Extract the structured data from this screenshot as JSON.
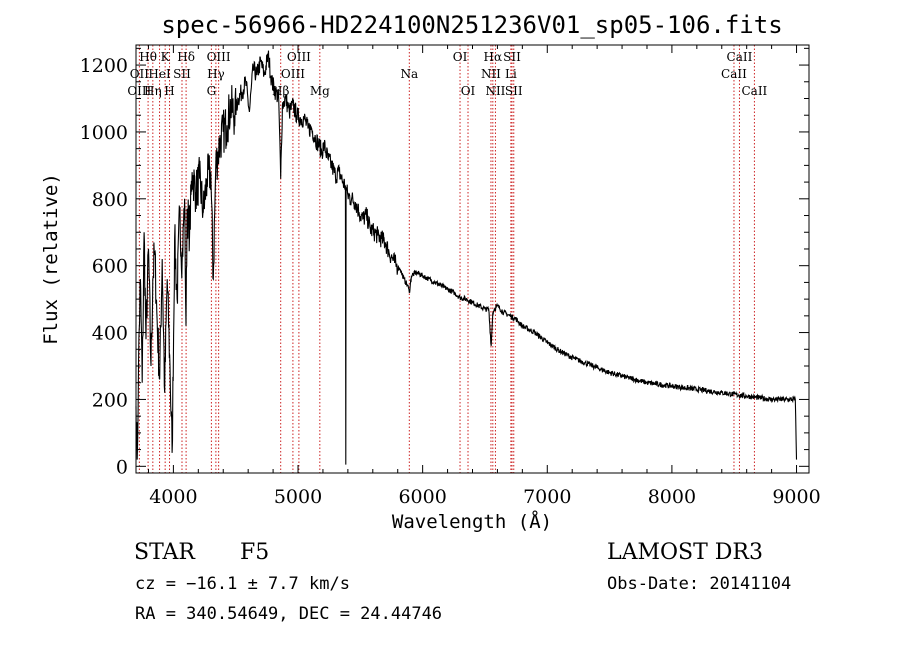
{
  "chart_data": {
    "type": "line",
    "title": "spec-56966-HD224100N251236V01_sp05-106.fits",
    "xlabel": "Wavelength (Å)",
    "ylabel": "Flux (relative)",
    "xlim": [
      3700,
      9100
    ],
    "ylim": [
      -20,
      1260
    ],
    "xticks": [
      4000,
      5000,
      6000,
      7000,
      8000,
      9000
    ],
    "yticks": [
      0,
      200,
      400,
      600,
      800,
      1000,
      1200
    ],
    "series": [
      {
        "name": "flux",
        "x": [
          3700,
          3710,
          3720,
          3735,
          3750,
          3765,
          3780,
          3800,
          3820,
          3835,
          3850,
          3870,
          3890,
          3910,
          3930,
          3950,
          3970,
          3990,
          4010,
          4030,
          4050,
          4070,
          4090,
          4101,
          4110,
          4130,
          4150,
          4180,
          4210,
          4240,
          4270,
          4300,
          4320,
          4340,
          4360,
          4380,
          4400,
          4430,
          4460,
          4490,
          4520,
          4550,
          4580,
          4610,
          4640,
          4670,
          4700,
          4730,
          4760,
          4790,
          4820,
          4845,
          4861,
          4875,
          4900,
          4930,
          4960,
          4990,
          5020,
          5050,
          5080,
          5110,
          5140,
          5170,
          5190,
          5210,
          5240,
          5270,
          5300,
          5330,
          5360,
          5380,
          5383,
          5386,
          5400,
          5430,
          5460,
          5490,
          5520,
          5550,
          5580,
          5610,
          5640,
          5670,
          5700,
          5730,
          5760,
          5790,
          5820,
          5850,
          5880,
          5893,
          5910,
          5950,
          6000,
          6050,
          6100,
          6150,
          6200,
          6250,
          6300,
          6350,
          6400,
          6450,
          6500,
          6530,
          6550,
          6563,
          6575,
          6600,
          6650,
          6700,
          6750,
          6800,
          6900,
          7000,
          7100,
          7200,
          7300,
          7400,
          7500,
          7600,
          7700,
          7800,
          7900,
          8000,
          8100,
          8200,
          8300,
          8400,
          8500,
          8600,
          8700,
          8800,
          8900,
          8990,
          9000
        ],
        "values": [
          180,
          20,
          300,
          560,
          250,
          700,
          380,
          650,
          300,
          560,
          640,
          430,
          260,
          620,
          220,
          560,
          330,
          40,
          680,
          500,
          760,
          610,
          800,
          420,
          770,
          700,
          880,
          820,
          860,
          760,
          860,
          880,
          560,
          900,
          940,
          980,
          1000,
          1020,
          1080,
          1050,
          1100,
          1120,
          1150,
          1060,
          1190,
          1170,
          1210,
          1170,
          1230,
          1150,
          1120,
          1100,
          860,
          1080,
          1100,
          1060,
          1080,
          1050,
          1040,
          1040,
          1010,
          1010,
          980,
          960,
          940,
          960,
          920,
          900,
          870,
          880,
          850,
          840,
          5,
          830,
          810,
          800,
          790,
          760,
          740,
          750,
          710,
          700,
          690,
          680,
          670,
          640,
          620,
          600,
          590,
          560,
          540,
          520,
          570,
          580,
          570,
          560,
          550,
          540,
          530,
          520,
          505,
          500,
          490,
          480,
          470,
          470,
          360,
          460,
          470,
          480,
          460,
          450,
          440,
          420,
          400,
          370,
          345,
          325,
          310,
          295,
          280,
          270,
          260,
          250,
          245,
          240,
          235,
          230,
          225,
          220,
          215,
          210,
          205,
          200,
          200,
          200,
          20
        ]
      }
    ],
    "lines": [
      {
        "label": "Hθ",
        "wl": 3797,
        "row": 0
      },
      {
        "label": "OII",
        "wl": 3727,
        "row": 1
      },
      {
        "label": "OIII",
        "wl": 3727,
        "row": 2
      },
      {
        "label": "HeI",
        "wl": 3889,
        "row": 1
      },
      {
        "label": "Hη",
        "wl": 3835,
        "row": 2
      },
      {
        "label": "K",
        "wl": 3934,
        "row": 0
      },
      {
        "label": "SII",
        "wl": 4069,
        "row": 1
      },
      {
        "label": "H",
        "wl": 3969,
        "row": 2
      },
      {
        "label": "Hδ",
        "wl": 4102,
        "row": 0
      },
      {
        "label": "OIII",
        "wl": 4363,
        "row": 0
      },
      {
        "label": "Hγ",
        "wl": 4341,
        "row": 1
      },
      {
        "label": "G",
        "wl": 4305,
        "row": 2
      },
      {
        "label": "OIII",
        "wl": 5007,
        "row": 0
      },
      {
        "label": "OIII",
        "wl": 4959,
        "row": 1
      },
      {
        "label": "Hβ",
        "wl": 4861,
        "row": 2
      },
      {
        "label": "Mg",
        "wl": 5175,
        "row": 2
      },
      {
        "label": "Na",
        "wl": 5893,
        "row": 1
      },
      {
        "label": "OI",
        "wl": 6300,
        "row": 0
      },
      {
        "label": "OI",
        "wl": 6364,
        "row": 2
      },
      {
        "label": "Hα",
        "wl": 6563,
        "row": 0
      },
      {
        "label": "NII",
        "wl": 6548,
        "row": 1
      },
      {
        "label": "NII",
        "wl": 6584,
        "row": 2
      },
      {
        "label": "SII",
        "wl": 6717,
        "row": 0
      },
      {
        "label": "Li",
        "wl": 6708,
        "row": 1
      },
      {
        "label": "SII",
        "wl": 6731,
        "row": 2
      },
      {
        "label": "CaII",
        "wl": 8542,
        "row": 0
      },
      {
        "label": "CaII",
        "wl": 8498,
        "row": 1
      },
      {
        "label": "CaII",
        "wl": 8662,
        "row": 2
      }
    ]
  },
  "info": {
    "object_class": "STAR",
    "subclass": "F5",
    "survey": "LAMOST DR3",
    "redshift": "cz = −16.1 ± 7.7 km/s",
    "obs_date": "Obs-Date: 20141104",
    "coords": "RA = 340.54649, DEC =  24.44746"
  },
  "colors": {
    "line_marker": "#cc2222",
    "spectrum": "#000000",
    "axes": "#000000"
  }
}
